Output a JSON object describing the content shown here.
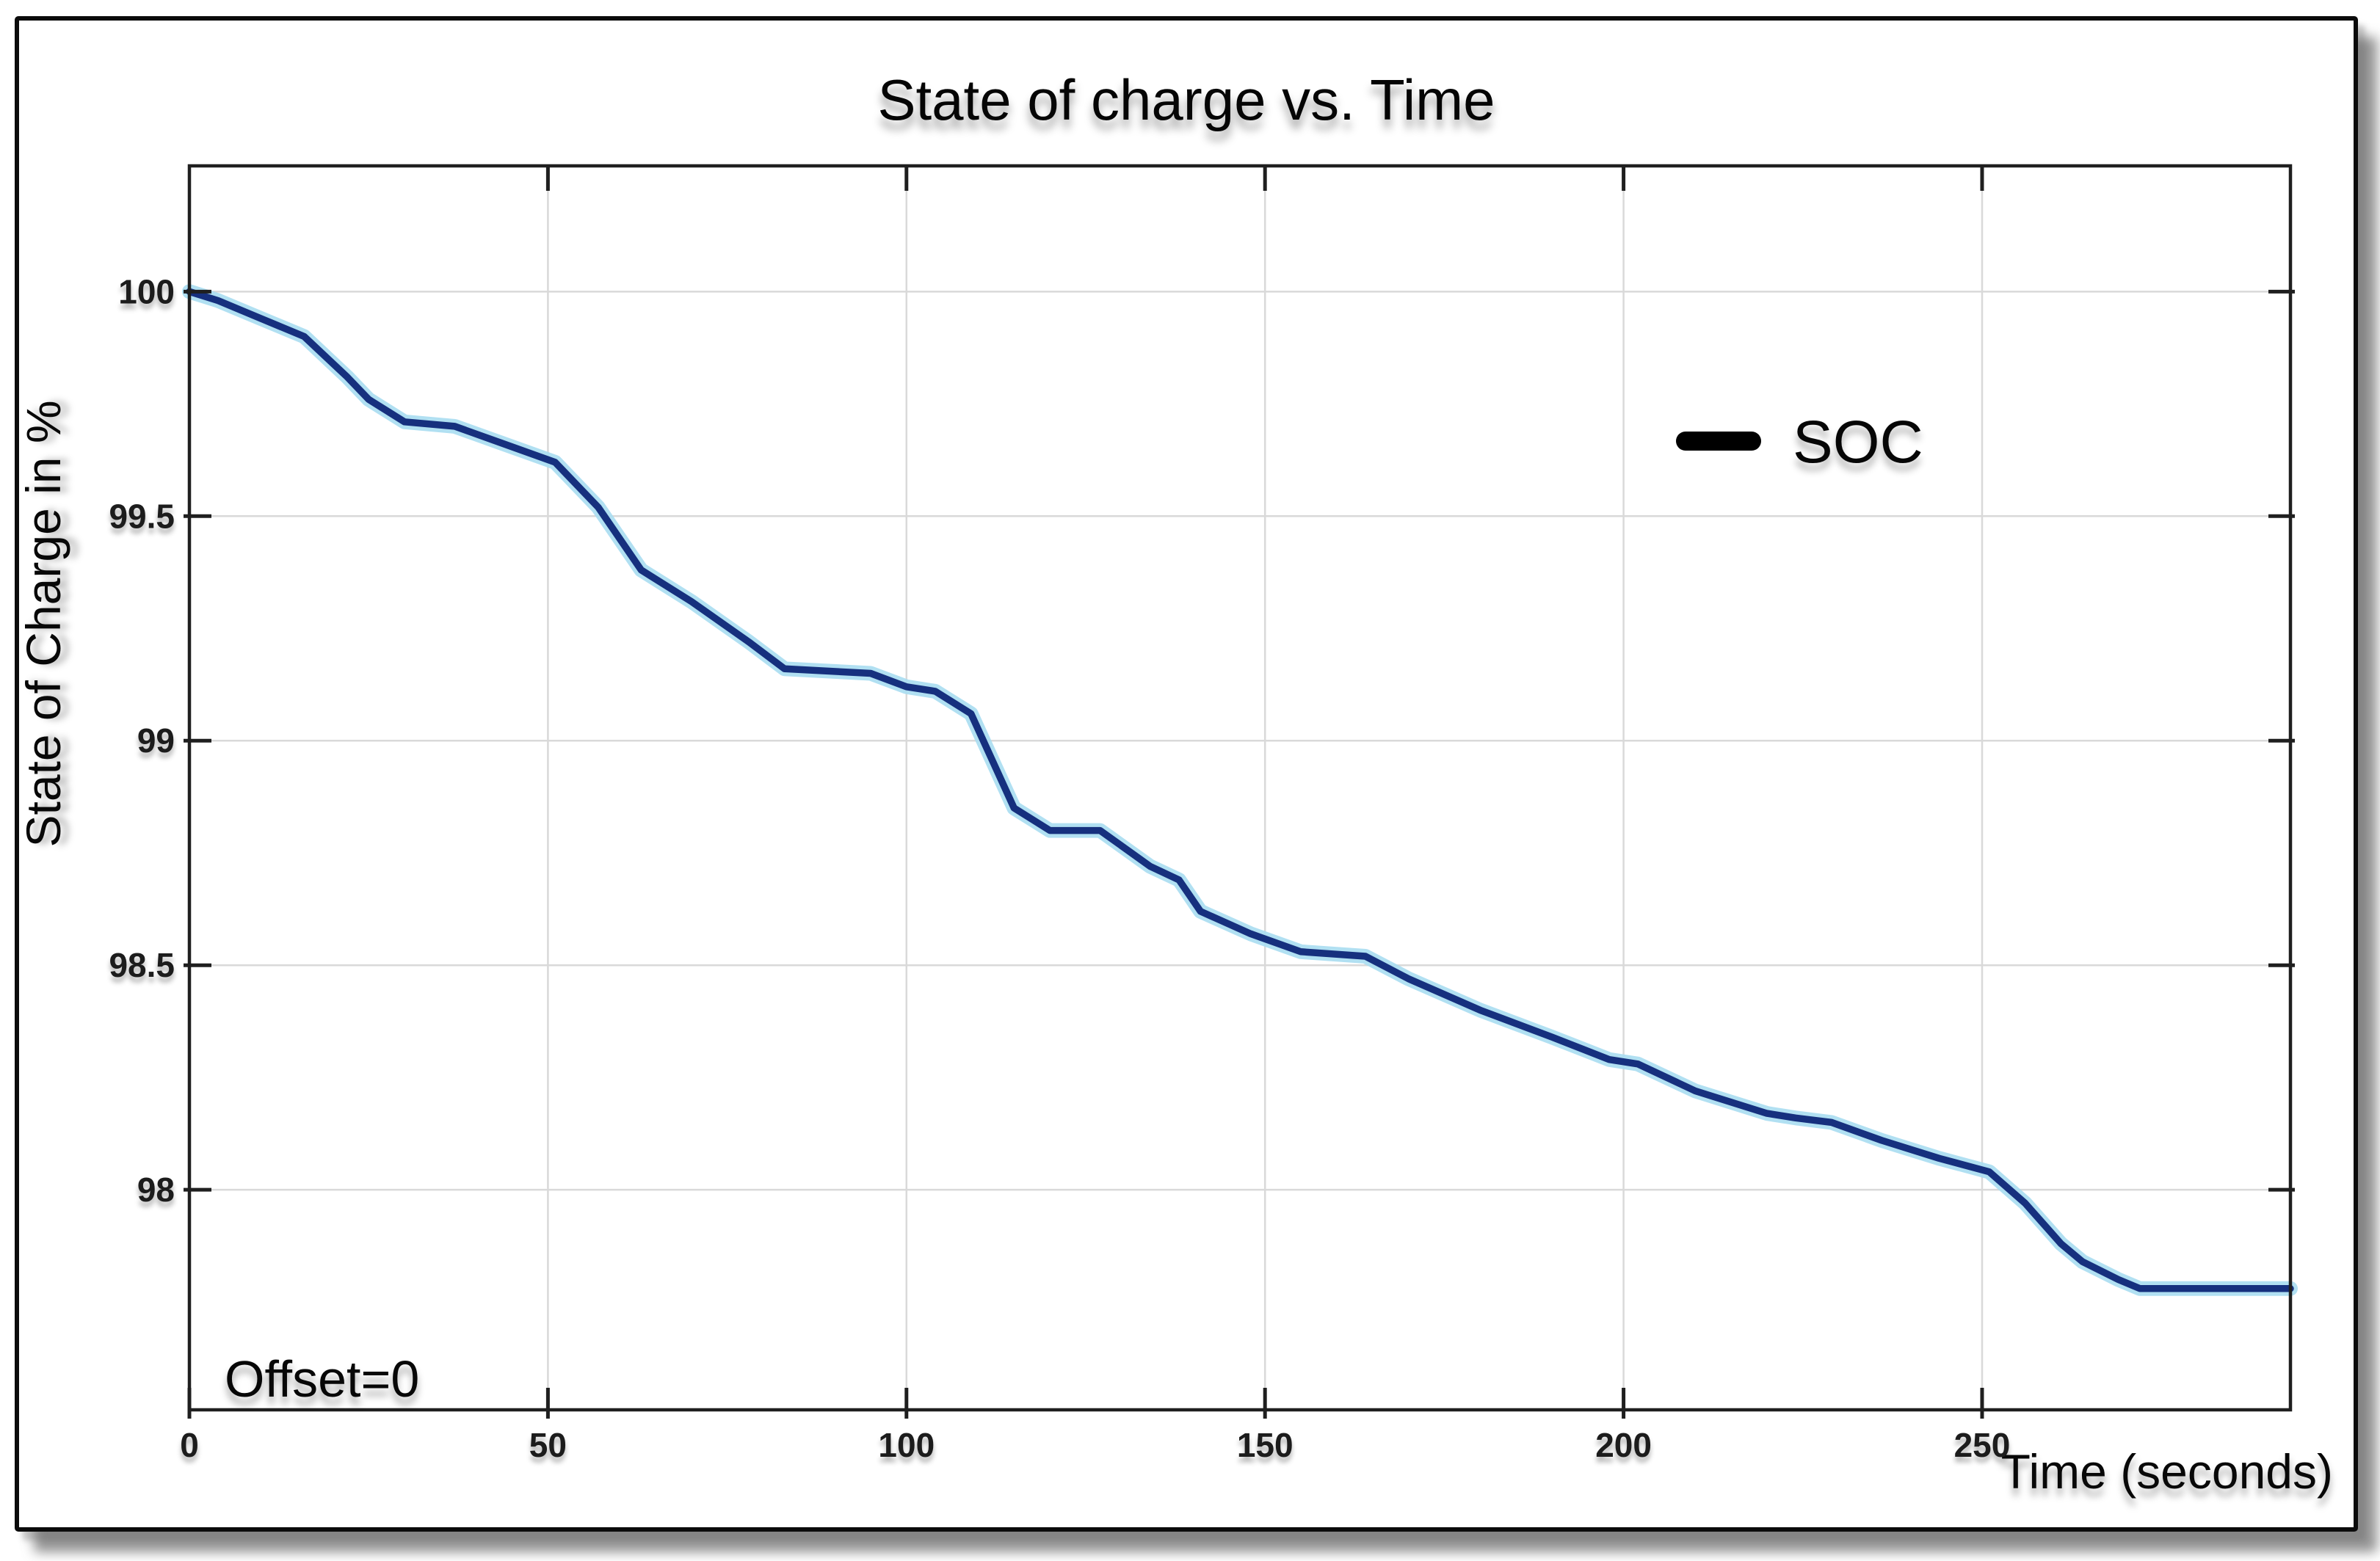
{
  "chart_data": {
    "type": "line",
    "title": "State of charge vs. Time",
    "xlabel": "Time (seconds)",
    "ylabel": "State of Charge in %",
    "annotation": "Offset=0",
    "legend": [
      "SOC"
    ],
    "legend_position": "inside upper-right area, no box, black dash marker",
    "grid": true,
    "x_range": [
      0,
      293
    ],
    "y_range": [
      97.51,
      100.28
    ],
    "x_ticks": [
      0,
      50,
      100,
      150,
      200,
      250
    ],
    "x_tick_labels": [
      "0",
      "50",
      "100",
      "150",
      "200",
      "250"
    ],
    "y_ticks": [
      98,
      98.5,
      99,
      99.5,
      100
    ],
    "y_tick_labels": [
      "98",
      "98.5",
      "99",
      "99.5",
      "100"
    ],
    "colors": {
      "line": "#16307e",
      "line_halo": "#a9ddf1",
      "grid": "#d9d9d9",
      "axis": "#1f1f1f",
      "legend_marker": "#000000"
    },
    "series": [
      {
        "name": "SOC",
        "x": [
          0,
          4,
          10,
          16,
          22,
          25,
          30,
          37,
          44,
          51,
          57,
          63,
          70,
          78,
          83,
          95,
          100,
          104,
          109,
          115,
          120,
          127,
          134,
          138,
          141,
          148,
          155,
          164,
          170,
          180,
          190,
          198,
          202,
          210,
          220,
          224,
          229,
          236,
          244,
          251,
          256,
          261,
          264,
          269,
          272,
          293
        ],
        "y": [
          100.0,
          99.98,
          99.94,
          99.9,
          99.81,
          99.76,
          99.71,
          99.7,
          99.66,
          99.62,
          99.52,
          99.38,
          99.31,
          99.22,
          99.16,
          99.15,
          99.12,
          99.11,
          99.06,
          98.85,
          98.8,
          98.8,
          98.72,
          98.69,
          98.62,
          98.57,
          98.53,
          98.52,
          98.47,
          98.4,
          98.34,
          98.29,
          98.28,
          98.22,
          98.17,
          98.16,
          98.15,
          98.11,
          98.07,
          98.04,
          97.97,
          97.88,
          97.84,
          97.8,
          97.78,
          97.78
        ]
      }
    ]
  }
}
